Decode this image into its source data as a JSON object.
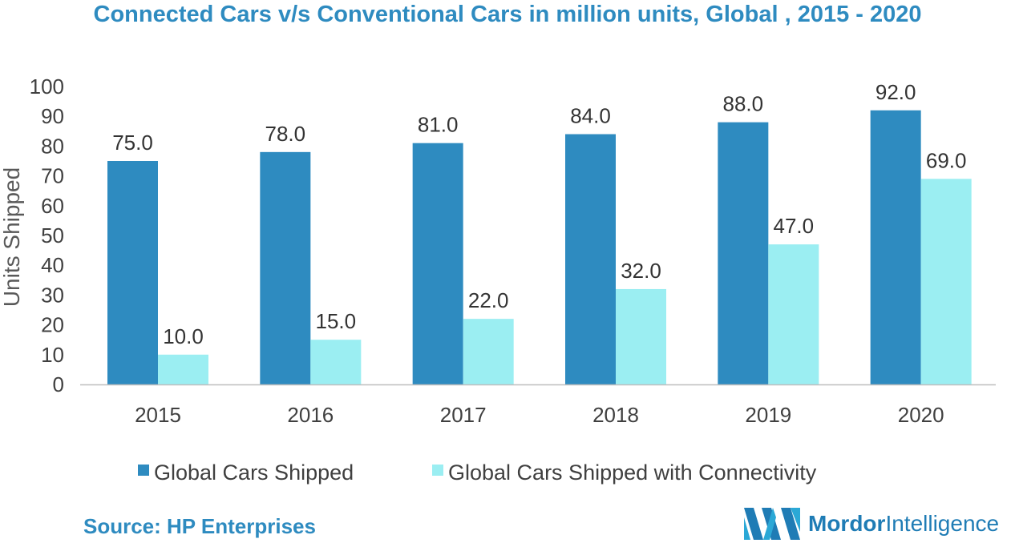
{
  "chart_data": {
    "type": "bar",
    "title": "Connected Cars v/s Conventional Cars in million units, Global , 2015 - 2020",
    "categories": [
      "2015",
      "2016",
      "2017",
      "2018",
      "2019",
      "2020"
    ],
    "series": [
      {
        "name": "Global Cars Shipped",
        "values": [
          75.0,
          78.0,
          81.0,
          84.0,
          88.0,
          92.0
        ],
        "color": "#2e8bc0"
      },
      {
        "name": "Global Cars Shipped with Connectivity",
        "values": [
          10.0,
          15.0,
          22.0,
          32.0,
          47.0,
          69.0
        ],
        "color": "#9beef2"
      }
    ],
    "xlabel": "",
    "ylabel": "Units Shipped",
    "ylim": [
      0,
      100
    ],
    "yticks": [
      0,
      10,
      20,
      30,
      40,
      50,
      60,
      70,
      80,
      90,
      100
    ],
    "data_labels": true,
    "legend_position": "bottom"
  },
  "source": "Source: HP Enterprises",
  "logo": {
    "brand_bold": "Mordor",
    "brand_light": "Intelligence",
    "icon": "mordor-logo-icon"
  }
}
